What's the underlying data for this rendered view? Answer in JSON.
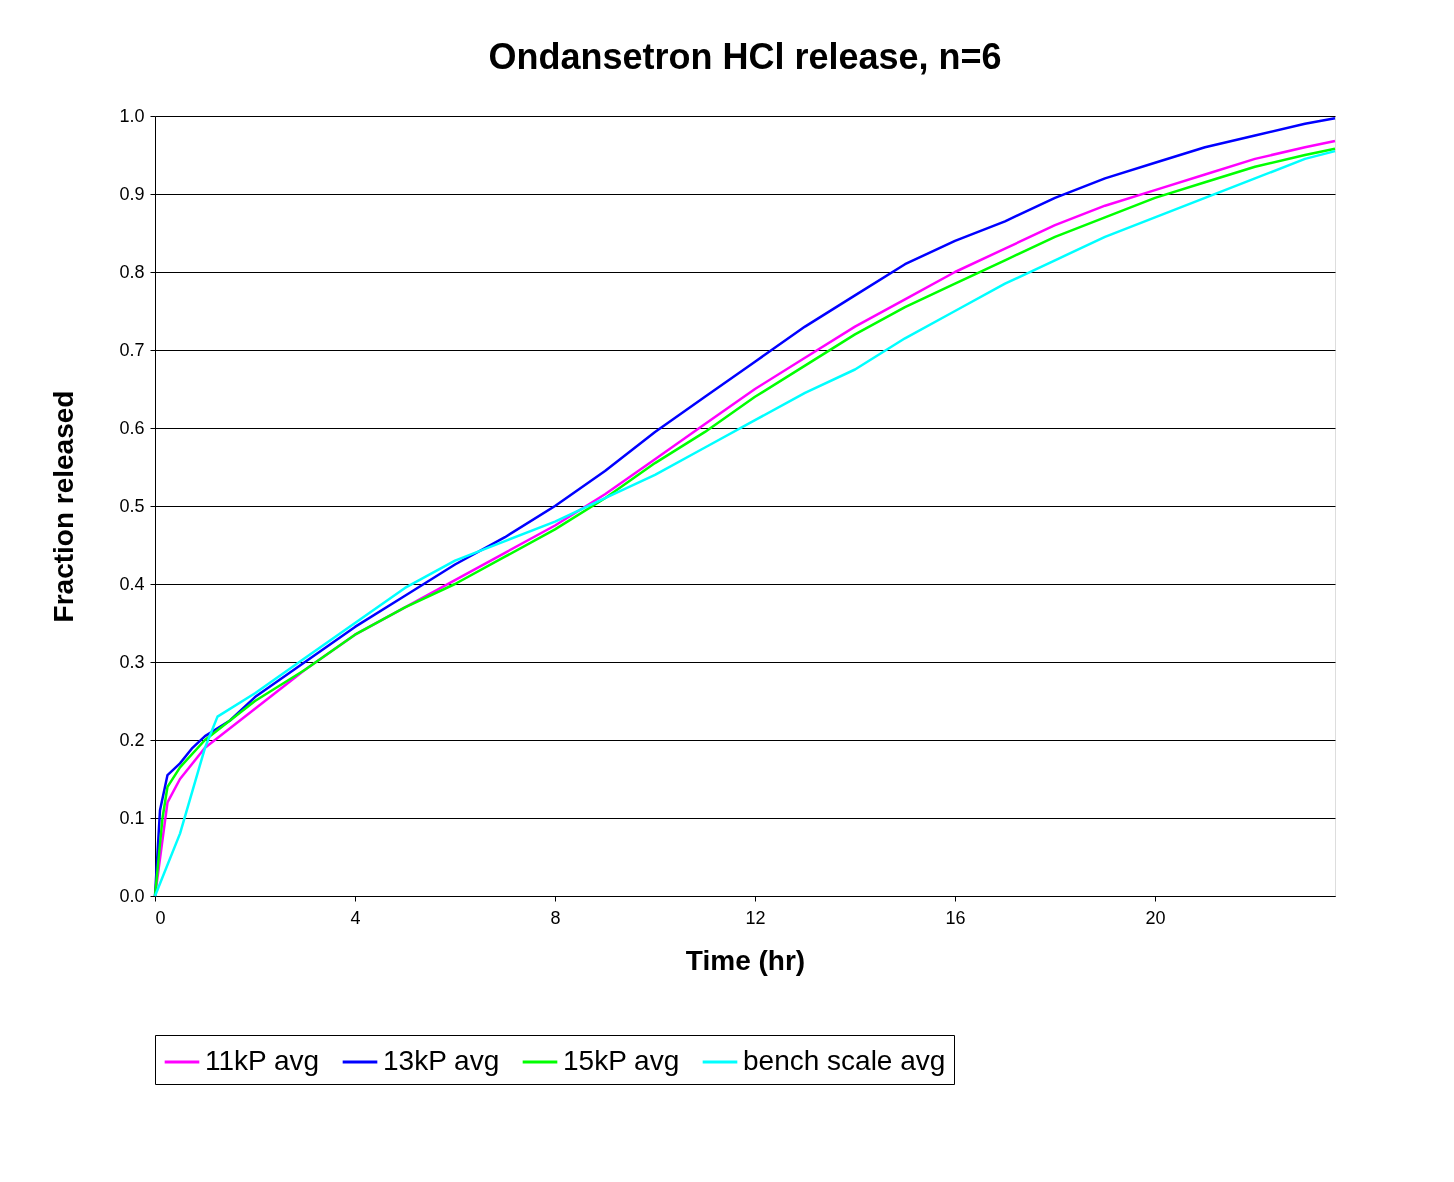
{
  "chart_data": {
    "type": "line",
    "title": "Ondansetron HCl release, n=6",
    "xlabel": "Time (hr)",
    "ylabel": "Fraction released",
    "xlim": [
      0,
      23.6
    ],
    "xticks": [
      0,
      4,
      8,
      12,
      16,
      20
    ],
    "ylim": [
      0,
      1.0
    ],
    "yticks": [
      {
        "value": 0,
        "label": "0.0"
      },
      {
        "value": 0.1,
        "label": "0.1"
      },
      {
        "value": 0.2,
        "label": "0.2"
      },
      {
        "value": 0.3,
        "label": "0.3"
      },
      {
        "value": 0.4,
        "label": "0.4"
      },
      {
        "value": 0.5,
        "label": "0.5"
      },
      {
        "value": 0.6,
        "label": "0.6"
      },
      {
        "value": 0.7,
        "label": "0.7"
      },
      {
        "value": 0.8,
        "label": "0.8"
      },
      {
        "value": 0.9,
        "label": "0.9"
      },
      {
        "value": 1.0,
        "label": "1.0"
      }
    ],
    "grid": "y",
    "legend": "bottom",
    "marker": "none",
    "line_style": "solid",
    "series": [
      {
        "name": "11kP avg",
        "color": "#ff00ff",
        "x": [
          0,
          0.25,
          0.5,
          1,
          1.5,
          2,
          3,
          4,
          5,
          6,
          7,
          8,
          9,
          10,
          11,
          12,
          13,
          14,
          15,
          16,
          17,
          18,
          19,
          20,
          21,
          22,
          23,
          23.6
        ],
        "values": [
          0,
          0.12,
          0.15,
          0.19,
          0.215,
          0.24,
          0.29,
          0.335,
          0.37,
          0.405,
          0.44,
          0.475,
          0.515,
          0.56,
          0.605,
          0.65,
          0.69,
          0.73,
          0.765,
          0.8,
          0.83,
          0.86,
          0.885,
          0.905,
          0.925,
          0.945,
          0.96,
          0.968
        ]
      },
      {
        "name": "13kP avg",
        "color": "#0000ff",
        "x": [
          0,
          0.1,
          0.25,
          0.5,
          0.75,
          1,
          1.5,
          2,
          3,
          4,
          5,
          6,
          7,
          8,
          9,
          10,
          11,
          12,
          13,
          14,
          15,
          16,
          17,
          18,
          19,
          20,
          21,
          22,
          23,
          23.6
        ],
        "values": [
          0,
          0.11,
          0.155,
          0.17,
          0.19,
          0.205,
          0.225,
          0.255,
          0.3,
          0.345,
          0.385,
          0.425,
          0.46,
          0.5,
          0.545,
          0.595,
          0.64,
          0.685,
          0.73,
          0.77,
          0.81,
          0.84,
          0.865,
          0.895,
          0.92,
          0.94,
          0.96,
          0.975,
          0.99,
          0.997
        ]
      },
      {
        "name": "15kP avg",
        "color": "#00ff00",
        "x": [
          0,
          0.15,
          0.25,
          0.5,
          1,
          1.5,
          2,
          3,
          4,
          5,
          6,
          7,
          8,
          9,
          10,
          11,
          12,
          13,
          14,
          15,
          16,
          17,
          18,
          19,
          20,
          21,
          22,
          23,
          23.6
        ],
        "values": [
          0,
          0.1,
          0.14,
          0.165,
          0.2,
          0.225,
          0.25,
          0.29,
          0.335,
          0.37,
          0.4,
          0.435,
          0.47,
          0.51,
          0.555,
          0.595,
          0.64,
          0.68,
          0.72,
          0.755,
          0.785,
          0.815,
          0.845,
          0.87,
          0.895,
          0.915,
          0.935,
          0.95,
          0.958
        ]
      },
      {
        "name": "bench scale avg",
        "color": "#00ffff",
        "x": [
          0,
          0.5,
          1,
          1.25,
          2,
          3,
          4,
          5,
          6,
          7,
          8,
          9,
          10,
          11,
          12,
          13,
          14,
          15,
          16,
          17,
          18,
          19,
          20,
          21,
          22,
          23,
          23.6
        ],
        "values": [
          0,
          0.08,
          0.19,
          0.23,
          0.26,
          0.305,
          0.35,
          0.395,
          0.43,
          0.455,
          0.48,
          0.51,
          0.54,
          0.575,
          0.61,
          0.645,
          0.675,
          0.715,
          0.75,
          0.785,
          0.815,
          0.845,
          0.87,
          0.895,
          0.92,
          0.945,
          0.955
        ]
      }
    ]
  }
}
